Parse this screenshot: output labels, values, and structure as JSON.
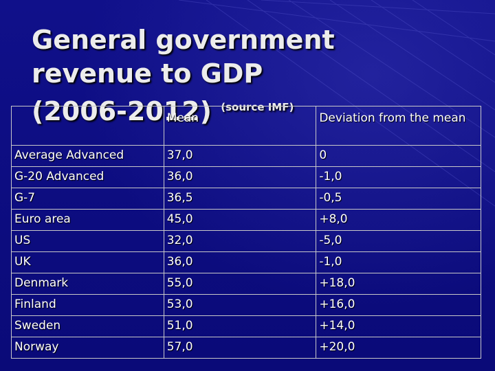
{
  "slide": {
    "title_line1": "General government",
    "title_line2": "revenue to GDP",
    "title_line3": "(2006-2012)",
    "source_note": "(source IMF)"
  },
  "table": {
    "headers": [
      "",
      "Mean",
      "Deviation from the mean"
    ],
    "rows": [
      {
        "label": "Average Advanced",
        "mean": "37,0",
        "deviation": "0"
      },
      {
        "label": "G-20 Advanced",
        "mean": "36,0",
        "deviation": "-1,0"
      },
      {
        "label": "G-7",
        "mean": "36,5",
        "deviation": "-0,5"
      },
      {
        "label": "Euro area",
        "mean": "45,0",
        "deviation": "+8,0"
      },
      {
        "label": "US",
        "mean": "32,0",
        "deviation": "-5,0"
      },
      {
        "label": "UK",
        "mean": "36,0",
        "deviation": "-1,0"
      },
      {
        "label": "Denmark",
        "mean": "55,0",
        "deviation": "+18,0"
      },
      {
        "label": "Finland",
        "mean": "53,0",
        "deviation": "+16,0"
      },
      {
        "label": "Sweden",
        "mean": "51,0",
        "deviation": "+14,0"
      },
      {
        "label": "Norway",
        "mean": "57,0",
        "deviation": "+20,0"
      }
    ]
  },
  "colors": {
    "background": "#0c0c7e",
    "text": "#ffffff",
    "title": "#ececec",
    "grid": "#c9c9c9"
  }
}
